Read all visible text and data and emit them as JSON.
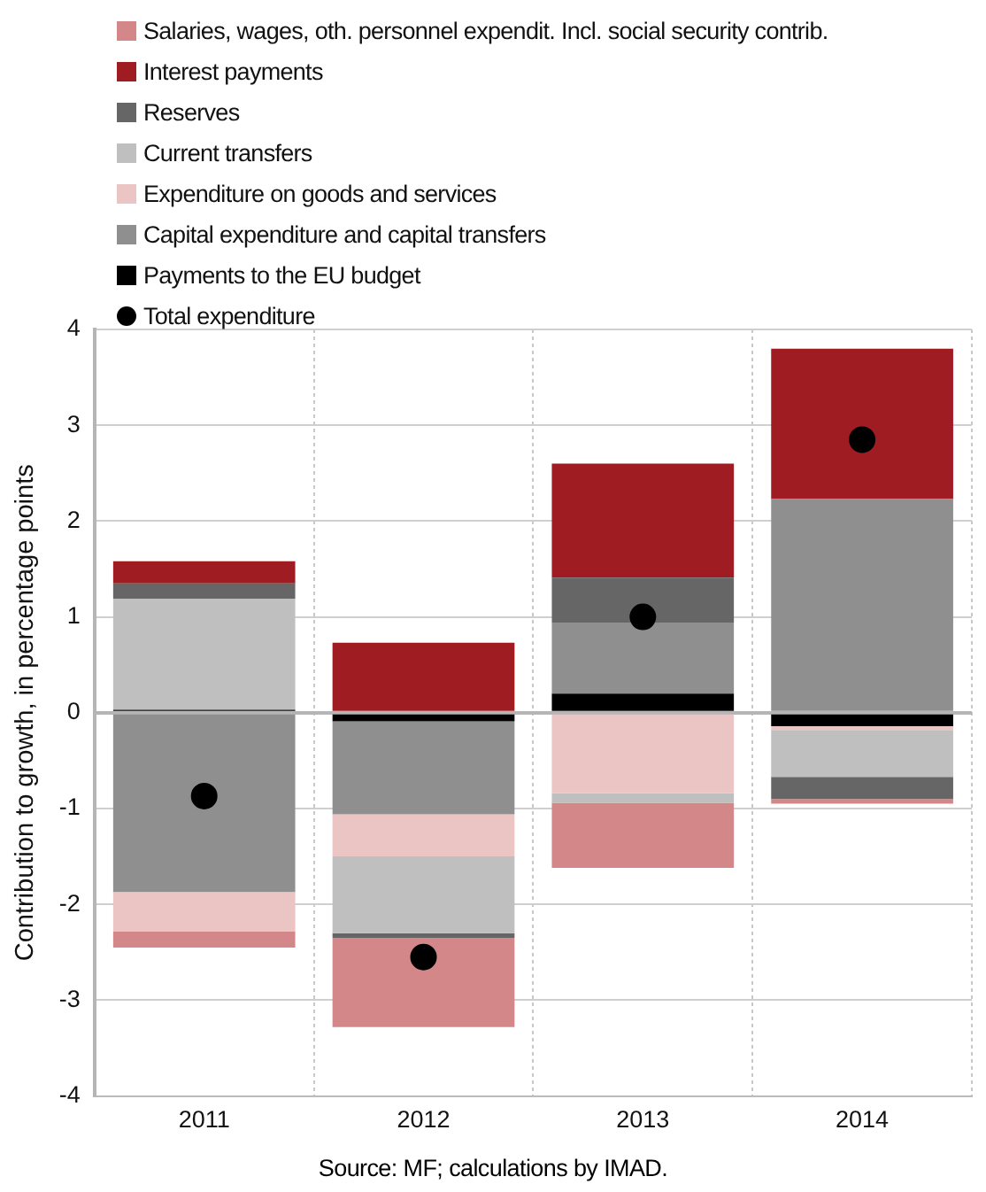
{
  "chart_data": {
    "type": "bar",
    "stacked": true,
    "ylabel": "Contribution to growth, in percentage points",
    "categories": [
      "2011",
      "2012",
      "2013",
      "2014"
    ],
    "series": [
      {
        "name": "Payments to the EU budget",
        "color": "#000000",
        "values": [
          0.03,
          -0.09,
          0.2,
          -0.14
        ]
      },
      {
        "name": "Capital expenditure and capital transfers",
        "color": "#8f8f8f",
        "values": [
          -1.87,
          -0.97,
          0.74,
          2.23
        ]
      },
      {
        "name": "Expenditure on goods and services",
        "color": "#ebc4c4",
        "values": [
          -0.41,
          -0.44,
          -0.84,
          -0.04
        ]
      },
      {
        "name": "Current transfers",
        "color": "#bfbfbf",
        "values": [
          1.16,
          -0.8,
          -0.1,
          -0.49
        ]
      },
      {
        "name": "Reserves",
        "color": "#666666",
        "values": [
          0.16,
          -0.05,
          0.47,
          -0.23
        ]
      },
      {
        "name": "Interest payments",
        "color": "#9e1c22",
        "values": [
          0.23,
          0.73,
          1.19,
          1.57
        ]
      },
      {
        "name": "Salaries, wages, oth. personnel expendit. Incl. social security contrib.",
        "color": "#d38788",
        "values": [
          -0.17,
          -0.93,
          -0.68,
          -0.05
        ]
      },
      {
        "name": "Total expenditure",
        "type": "scatter",
        "color": "#000000",
        "values": [
          -0.87,
          -2.55,
          1.0,
          2.85
        ],
        "marker": "circle"
      }
    ],
    "ylim": [
      -4,
      4
    ],
    "yticks": [
      -4,
      -3,
      -2,
      -1,
      0,
      1,
      2,
      3,
      4
    ],
    "grid": true,
    "legend": "top left",
    "annotations": [
      "Source: MF; calculations by IMAD."
    ]
  }
}
